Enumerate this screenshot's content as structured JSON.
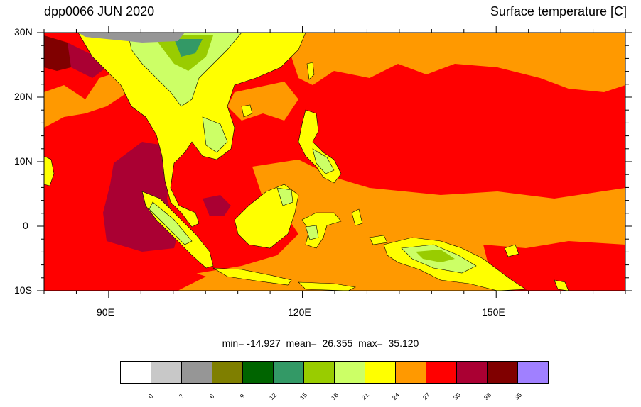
{
  "title_left": "dpp0066 JUN 2020",
  "title_right": "Surface temperature [C]",
  "stats": "min= -14.927  mean=  26.355  max=  35.120",
  "lat_labels": [
    "30N",
    "20N",
    "10N",
    "0",
    "10S"
  ],
  "lon_labels": [
    "90E",
    "120E",
    "150E"
  ],
  "colorbar": {
    "colors": [
      "#ffffff",
      "#c8c8c8",
      "#969696",
      "#7f7f00",
      "#006400",
      "#339966",
      "#99cc00",
      "#ccff66",
      "#ffff00",
      "#ff9900",
      "#ff0000",
      "#aa0033",
      "#800000",
      "#a080ff"
    ],
    "labels": [
      "0",
      "3",
      "6",
      "9",
      "12",
      "15",
      "18",
      "21",
      "24",
      "27",
      "30",
      "33",
      "36"
    ]
  },
  "field_colors": {
    "ocean_warm": "#ff0000",
    "ocean_cool": "#ff9900",
    "hot": "#aa0033",
    "very_hot": "#800000",
    "land_yellow": "#ffff00",
    "land_lightgreen": "#ccff66",
    "land_green": "#99cc00",
    "land_darkgreen": "#339966",
    "mountain_gray": "#969696"
  }
}
